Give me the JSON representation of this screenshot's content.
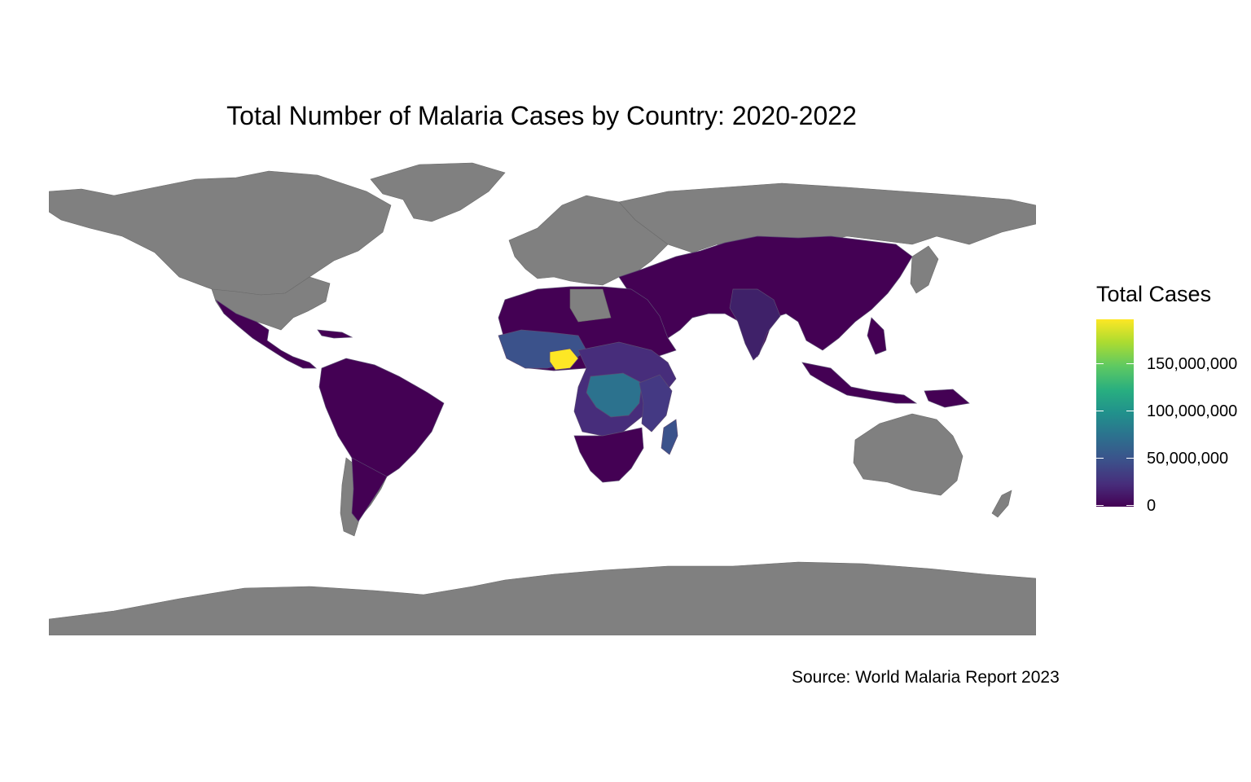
{
  "title": "Total Number of Malaria Cases by Country: 2020-2022",
  "legend": {
    "title": "Total Cases",
    "labels": [
      "0",
      "50,000,000",
      "100,000,000",
      "150,000,000"
    ]
  },
  "source": "Source: World Malaria Report 2023",
  "colors": {
    "no_data": "#808080",
    "scale": [
      "#440154",
      "#3b528b",
      "#21918c",
      "#5ec962",
      "#fde725"
    ]
  },
  "chart_data": {
    "type": "choropleth",
    "value_range": [
      0,
      195000000
    ],
    "highlights": [
      {
        "region": "Nigeria",
        "level": "max"
      },
      {
        "region": "Democratic Republic of the Congo",
        "level": "high"
      },
      {
        "region": "Uganda",
        "level": "medium"
      },
      {
        "region": "Mozambique",
        "level": "medium"
      },
      {
        "region": "Angola",
        "level": "medium"
      },
      {
        "region": "India",
        "level": "low"
      }
    ]
  }
}
